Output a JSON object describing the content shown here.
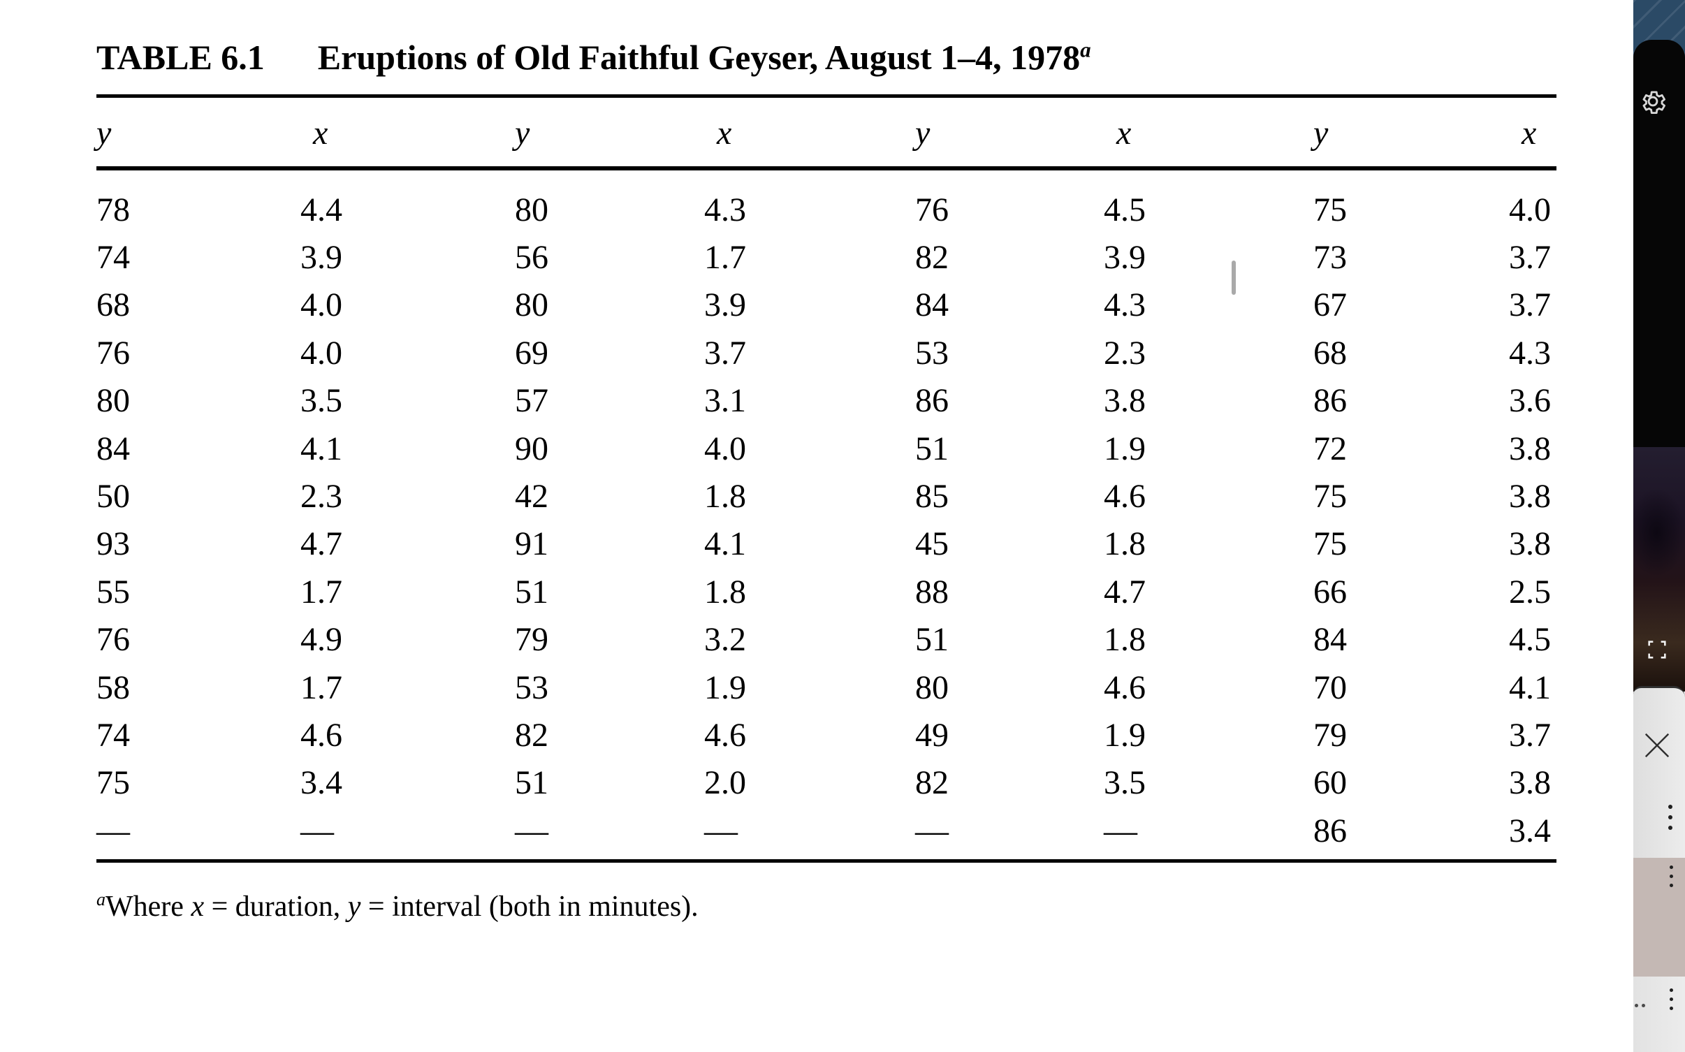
{
  "document": {
    "table_label": "TABLE 6.1",
    "table_title": "Eruptions of Old Faithful Geyser, August 1–4, 1978",
    "title_superscript": "a",
    "column_headers": [
      "y",
      "x",
      "y",
      "x",
      "y",
      "x",
      "y",
      "x"
    ],
    "rows": [
      [
        "78",
        "4.4",
        "80",
        "4.3",
        "76",
        "4.5",
        "75",
        "4.0"
      ],
      [
        "74",
        "3.9",
        "56",
        "1.7",
        "82",
        "3.9",
        "73",
        "3.7"
      ],
      [
        "68",
        "4.0",
        "80",
        "3.9",
        "84",
        "4.3",
        "67",
        "3.7"
      ],
      [
        "76",
        "4.0",
        "69",
        "3.7",
        "53",
        "2.3",
        "68",
        "4.3"
      ],
      [
        "80",
        "3.5",
        "57",
        "3.1",
        "86",
        "3.8",
        "86",
        "3.6"
      ],
      [
        "84",
        "4.1",
        "90",
        "4.0",
        "51",
        "1.9",
        "72",
        "3.8"
      ],
      [
        "50",
        "2.3",
        "42",
        "1.8",
        "85",
        "4.6",
        "75",
        "3.8"
      ],
      [
        "93",
        "4.7",
        "91",
        "4.1",
        "45",
        "1.8",
        "75",
        "3.8"
      ],
      [
        "55",
        "1.7",
        "51",
        "1.8",
        "88",
        "4.7",
        "66",
        "2.5"
      ],
      [
        "76",
        "4.9",
        "79",
        "3.2",
        "51",
        "1.8",
        "84",
        "4.5"
      ],
      [
        "58",
        "1.7",
        "53",
        "1.9",
        "80",
        "4.6",
        "70",
        "4.1"
      ],
      [
        "74",
        "4.6",
        "82",
        "4.6",
        "49",
        "1.9",
        "79",
        "3.7"
      ],
      [
        "75",
        "3.4",
        "51",
        "2.0",
        "82",
        "3.5",
        "60",
        "3.8"
      ],
      [
        "—",
        "—",
        "—",
        "—",
        "—",
        "—",
        "86",
        "3.4"
      ]
    ],
    "footnote": {
      "superscript": "a",
      "part1": "Where ",
      "x_var": "x",
      "part2": " = duration, ",
      "y_var": "y",
      "part3": " = interval (both in minutes)."
    }
  },
  "caret": {
    "visible": true,
    "color": "#a9a9a9"
  },
  "sidebar": {
    "wallpaper_color": "#2b4a66",
    "top_panel_color": "#060606",
    "light_panel_color": "#e6e6e6",
    "taupe_panel_color": "#c4b8b4",
    "bottom_panel_color": "#e6e6e6",
    "icon_color_on_dark": "#d8d8d8",
    "icon_color_on_light": "#2e2e2e",
    "icons": [
      {
        "name": "gear-icon"
      },
      {
        "name": "fullscreen-icon"
      },
      {
        "name": "close-icon"
      },
      {
        "name": "more-vertical-icon"
      },
      {
        "name": "more-vertical-icon"
      },
      {
        "name": "more-vertical-icon"
      },
      {
        "name": "drag-dots-icon"
      }
    ]
  }
}
